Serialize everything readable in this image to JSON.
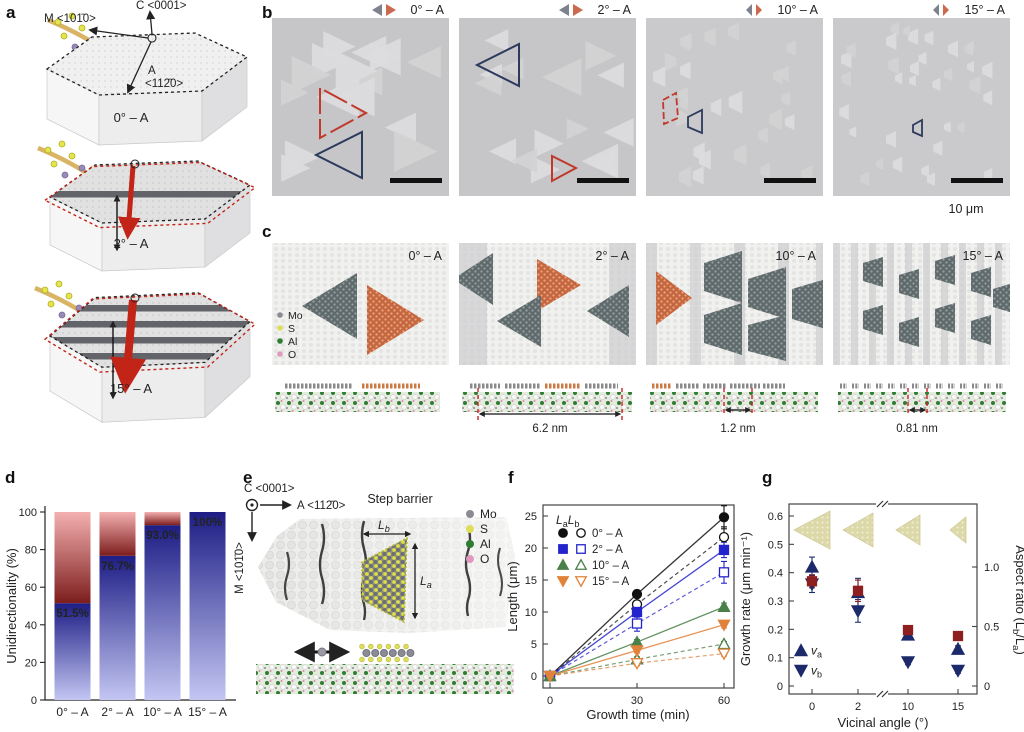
{
  "panels": {
    "a": "a",
    "b": "b",
    "c": "c",
    "d": "d",
    "e": "e",
    "f": "f",
    "g": "g"
  },
  "panel_a": {
    "axis_c": "C <0001>",
    "axis_m": "M <101̄0>",
    "axis_a_1": "A",
    "axis_a_2": "<112̄0>",
    "hex_labels": [
      "0° – A",
      "2° – A",
      "15° – A"
    ]
  },
  "panel_b": {
    "images": [
      {
        "label": "0° – A"
      },
      {
        "label": "2° – A"
      },
      {
        "label": "10° – A"
      },
      {
        "label": "15° – A"
      }
    ],
    "scale_label": "10 μm"
  },
  "panel_c": {
    "labels": [
      "0° – A",
      "2° – A",
      "10° – A",
      "15° – A"
    ],
    "legend": [
      {
        "name": "Mo",
        "color": "#8b8b95"
      },
      {
        "name": "S",
        "color": "#dede5a"
      },
      {
        "name": "Al",
        "color": "#2e7d32"
      },
      {
        "name": "O",
        "color": "#e09ac0"
      }
    ],
    "measurements": [
      "6.2 nm",
      "1.2 nm",
      "0.81 nm"
    ]
  },
  "panel_e": {
    "axis_c": "C <0001>",
    "axis_a": "A <112̄0>",
    "axis_m": "M <101̄0>",
    "step_barrier": "Step barrier",
    "la": {
      "base": "L",
      "sub": "a"
    },
    "lb": {
      "base": "L",
      "sub": "b"
    },
    "legend": [
      {
        "name": "Mo",
        "color": "#8b8b95"
      },
      {
        "name": "S",
        "color": "#dede5a"
      },
      {
        "name": "Al",
        "color": "#2e7d32"
      },
      {
        "name": "O",
        "color": "#e09ac0"
      }
    ]
  },
  "chart_data": [
    {
      "id": "d",
      "type": "bar",
      "ylabel": "Unidirectionality (%)",
      "categories": [
        "0° – A",
        "2° – A",
        "10° – A",
        "15° – A"
      ],
      "values": [
        51.5,
        76.7,
        93.0,
        100
      ],
      "value_labels": [
        "51.5%",
        "76.7%",
        "93.0%",
        "100%"
      ],
      "ylim": [
        0,
        100
      ],
      "yticks": [
        0,
        20,
        40,
        60,
        80,
        100
      ],
      "colors": {
        "majority_dark": "#1d1d85",
        "majority_light": "#c3c6f2",
        "minority_dark": "#7d1d1d",
        "minority_light": "#f4b0b0"
      }
    },
    {
      "id": "f",
      "type": "line",
      "xlabel": "Growth time (min)",
      "ylabel": "Length (μm)",
      "x": [
        0,
        30,
        60
      ],
      "xticks": [
        0,
        30,
        60
      ],
      "yticks": [
        0,
        5,
        10,
        15,
        20,
        25
      ],
      "ylim": [
        0,
        26.5
      ],
      "legend": {
        "la": {
          "base": "L",
          "sub": "a"
        },
        "lb": {
          "base": "L",
          "sub": "b"
        }
      },
      "series": [
        {
          "name": "0° – A",
          "marker": "circle",
          "color": "#111111",
          "La": [
            0,
            12.8,
            24.8
          ],
          "La_err": [
            0,
            0.6,
            1.8
          ],
          "Lb": [
            0,
            11.2,
            21.7
          ],
          "Lb_err": [
            0,
            1.0,
            1.6
          ]
        },
        {
          "name": "2° – A",
          "marker": "square",
          "color": "#2424cc",
          "La": [
            0,
            10.0,
            19.7
          ],
          "La_err": [
            0,
            0.8,
            1.2
          ],
          "Lb": [
            0,
            8.2,
            16.2
          ],
          "Lb_err": [
            0,
            1.2,
            1.7
          ]
        },
        {
          "name": "10° – A",
          "marker": "triangle-up",
          "color": "#4a8049",
          "La": [
            0,
            5.3,
            10.8
          ],
          "La_err": [
            0,
            0.4,
            0.6
          ],
          "Lb": [
            0,
            2.6,
            5.0
          ],
          "Lb_err": [
            0,
            0.4,
            0.4
          ]
        },
        {
          "name": "15° – A",
          "marker": "triangle-down",
          "color": "#e0823a",
          "La": [
            0,
            4.0,
            8.0
          ],
          "La_err": [
            0,
            0.4,
            0.5
          ],
          "Lb": [
            0,
            2.0,
            3.5
          ],
          "Lb_err": [
            0,
            0.4,
            0.4
          ]
        }
      ]
    },
    {
      "id": "g",
      "type": "scatter",
      "xlabel": "Vicinal angle (°)",
      "left_ylabel": "Growth rate (μm min⁻¹)",
      "right_ylabel_parts": [
        "Aspect ratio (L",
        "b",
        "/L",
        "a",
        ")"
      ],
      "categories": [
        "0",
        "2",
        "10",
        "15"
      ],
      "left_ylim": [
        0,
        0.6
      ],
      "left_yticks": [
        "0",
        "0.1",
        "0.2",
        "0.3",
        "0.4",
        "0.5",
        "0.6"
      ],
      "right_yticks": [
        "0",
        "0.5",
        "1.0"
      ],
      "va": {
        "label": {
          "base": "v",
          "sub": "a"
        },
        "color": "#1c2a6b",
        "values": [
          0.42,
          0.33,
          0.18,
          0.13
        ],
        "err": [
          0.035,
          0.05,
          0.015,
          0.012
        ]
      },
      "vb": {
        "label": {
          "base": "v",
          "sub": "b"
        },
        "color": "#1c2a6b",
        "values": [
          0.36,
          0.265,
          0.085,
          0.055
        ],
        "err": [
          0.03,
          0.04,
          0.01,
          0.01
        ]
      },
      "aspect_ratio": {
        "color": "#8e1f1f",
        "values": [
          0.88,
          0.8,
          0.47,
          0.42
        ],
        "err": [
          0.055,
          0.09,
          0.03,
          0.025
        ]
      }
    }
  ]
}
